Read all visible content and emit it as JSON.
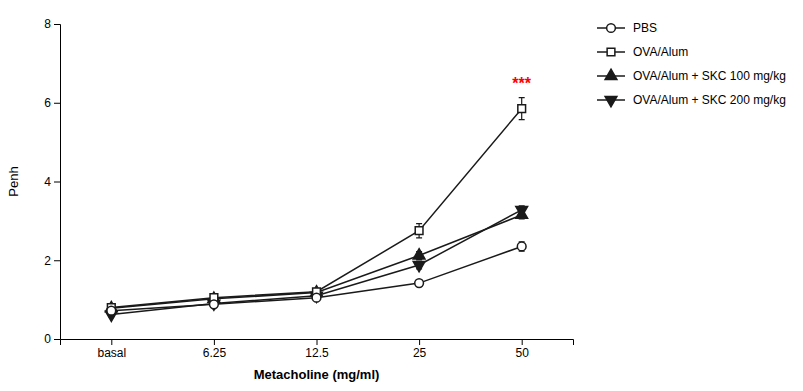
{
  "chart_data": {
    "type": "line",
    "categories": [
      "basal",
      "6.25",
      "12.5",
      "25",
      "50"
    ],
    "series": [
      {
        "name": "PBS",
        "color": "#1a1a1a",
        "marker": "circle-open",
        "values": [
          0.72,
          0.88,
          1.05,
          1.42,
          2.35
        ],
        "errors": [
          0.05,
          0.06,
          0.05,
          0.08,
          0.12
        ]
      },
      {
        "name": "OVA/Alum",
        "color": "#1a1a1a",
        "marker": "square-open",
        "values": [
          0.8,
          1.05,
          1.2,
          2.75,
          5.85
        ],
        "errors": [
          0.06,
          0.07,
          0.07,
          0.18,
          0.28
        ]
      },
      {
        "name": "OVA/Alum + SKC 100 mg/kg",
        "color": "#1a1a1a",
        "marker": "triangle-up",
        "values": [
          0.78,
          1.02,
          1.18,
          2.12,
          3.15
        ],
        "errors": [
          0.05,
          0.06,
          0.06,
          0.1,
          0.1
        ]
      },
      {
        "name": "OVA/Alum + SKC 200 mg/kg",
        "color": "#1a1a1a",
        "marker": "triangle-down",
        "values": [
          0.62,
          0.9,
          1.1,
          1.88,
          3.28
        ],
        "errors": [
          0.05,
          0.05,
          0.05,
          0.1,
          0.1
        ]
      }
    ],
    "x_label": "Metacholine (mg/ml)",
    "y_label": "Penh",
    "ylim": [
      0,
      8
    ],
    "yticks": [
      0,
      2,
      4,
      6,
      8
    ],
    "grid": false,
    "legend": "right",
    "annotations": [
      {
        "text": "***",
        "x": "50",
        "y": 6.35,
        "color": "#ff0000"
      }
    ]
  }
}
